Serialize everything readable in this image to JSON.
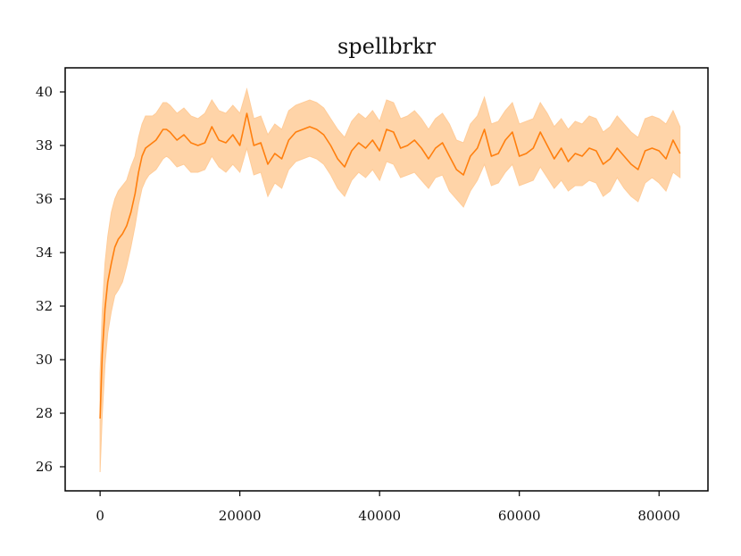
{
  "chart_data": {
    "type": "line",
    "title": "spellbrkr",
    "xlabel": "",
    "ylabel": "",
    "xlim": [
      -5000,
      87000
    ],
    "ylim": [
      25.1,
      40.9
    ],
    "x_ticks": [
      0,
      20000,
      40000,
      60000,
      80000
    ],
    "y_ticks": [
      26,
      28,
      30,
      32,
      34,
      36,
      38,
      40
    ],
    "grid": false,
    "legend": "none",
    "colors": {
      "line": "#ff7f0e",
      "band": "#ffcc99",
      "axes": "#000000"
    },
    "series": [
      {
        "x": [
          0,
          300,
          700,
          1100,
          1600,
          2100,
          2600,
          3200,
          3800,
          4400,
          5000,
          5500,
          6000,
          6500,
          7000,
          7500,
          8000,
          8500,
          9000,
          9500,
          10000,
          11000,
          12000,
          13000,
          14000,
          15000,
          16000,
          17000,
          18000,
          19000,
          20000,
          21000,
          22000,
          23000,
          24000,
          25000,
          26000,
          27000,
          28000,
          29000,
          30000,
          31000,
          32000,
          33000,
          34000,
          35000,
          36000,
          37000,
          38000,
          39000,
          40000,
          41000,
          42000,
          43000,
          44000,
          45000,
          46000,
          47000,
          48000,
          49000,
          50000,
          51000,
          52000,
          53000,
          54000,
          55000,
          56000,
          57000,
          58000,
          59000,
          60000,
          61000,
          62000,
          63000,
          64000,
          65000,
          66000,
          67000,
          68000,
          69000,
          70000,
          71000,
          72000,
          73000,
          74000,
          75000,
          76000,
          77000,
          78000,
          79000,
          80000,
          81000,
          82000,
          83000
        ],
        "y": [
          27.8,
          30.2,
          31.9,
          32.9,
          33.6,
          34.2,
          34.5,
          34.7,
          35.0,
          35.5,
          36.2,
          37.0,
          37.6,
          37.9,
          38.0,
          38.1,
          38.2,
          38.4,
          38.6,
          38.6,
          38.5,
          38.2,
          38.4,
          38.1,
          38.0,
          38.1,
          38.7,
          38.2,
          38.1,
          38.4,
          38.0,
          39.2,
          38.0,
          38.1,
          37.3,
          37.7,
          37.5,
          38.2,
          38.5,
          38.6,
          38.7,
          38.6,
          38.4,
          38.0,
          37.5,
          37.2,
          37.8,
          38.1,
          37.9,
          38.2,
          37.8,
          38.6,
          38.5,
          37.9,
          38.0,
          38.2,
          37.9,
          37.5,
          37.9,
          38.1,
          37.6,
          37.1,
          36.9,
          37.6,
          37.9,
          38.6,
          37.6,
          37.7,
          38.2,
          38.5,
          37.6,
          37.7,
          37.9,
          38.5,
          38.0,
          37.5,
          37.9,
          37.4,
          37.7,
          37.6,
          37.9,
          37.8,
          37.3,
          37.5,
          37.9,
          37.6,
          37.3,
          37.1,
          37.8,
          37.9,
          37.8,
          37.5,
          38.2,
          37.7
        ],
        "lower": [
          25.8,
          27.9,
          29.8,
          31.0,
          31.8,
          32.4,
          32.6,
          32.9,
          33.5,
          34.2,
          35.0,
          35.8,
          36.4,
          36.7,
          36.9,
          37.0,
          37.1,
          37.3,
          37.5,
          37.6,
          37.5,
          37.2,
          37.3,
          37.0,
          37.0,
          37.1,
          37.6,
          37.2,
          37.0,
          37.3,
          37.0,
          37.9,
          36.9,
          37.0,
          36.1,
          36.6,
          36.4,
          37.1,
          37.4,
          37.5,
          37.6,
          37.5,
          37.3,
          36.9,
          36.4,
          36.1,
          36.7,
          37.0,
          36.8,
          37.1,
          36.7,
          37.4,
          37.3,
          36.8,
          36.9,
          37.0,
          36.7,
          36.4,
          36.8,
          36.9,
          36.3,
          36.0,
          35.7,
          36.3,
          36.7,
          37.3,
          36.5,
          36.6,
          37.0,
          37.3,
          36.5,
          36.6,
          36.7,
          37.2,
          36.8,
          36.4,
          36.7,
          36.3,
          36.5,
          36.5,
          36.7,
          36.6,
          36.1,
          36.3,
          36.8,
          36.4,
          36.1,
          35.9,
          36.6,
          36.8,
          36.6,
          36.3,
          37.0,
          36.8
        ],
        "upper": [
          29.5,
          31.8,
          33.6,
          34.6,
          35.5,
          36.0,
          36.3,
          36.5,
          36.7,
          37.2,
          37.6,
          38.3,
          38.8,
          39.1,
          39.1,
          39.1,
          39.2,
          39.4,
          39.6,
          39.6,
          39.5,
          39.2,
          39.4,
          39.1,
          39.0,
          39.2,
          39.7,
          39.3,
          39.2,
          39.5,
          39.2,
          40.1,
          39.0,
          39.1,
          38.4,
          38.8,
          38.6,
          39.3,
          39.5,
          39.6,
          39.7,
          39.6,
          39.4,
          39.0,
          38.6,
          38.3,
          38.9,
          39.2,
          39.0,
          39.3,
          38.9,
          39.7,
          39.6,
          39.0,
          39.1,
          39.3,
          39.0,
          38.6,
          39.0,
          39.2,
          38.8,
          38.2,
          38.1,
          38.8,
          39.1,
          39.8,
          38.8,
          38.9,
          39.3,
          39.6,
          38.8,
          38.9,
          39.0,
          39.6,
          39.2,
          38.7,
          39.0,
          38.6,
          38.9,
          38.8,
          39.1,
          39.0,
          38.5,
          38.7,
          39.1,
          38.8,
          38.5,
          38.3,
          39.0,
          39.1,
          39.0,
          38.8,
          39.3,
          38.7
        ]
      }
    ]
  }
}
